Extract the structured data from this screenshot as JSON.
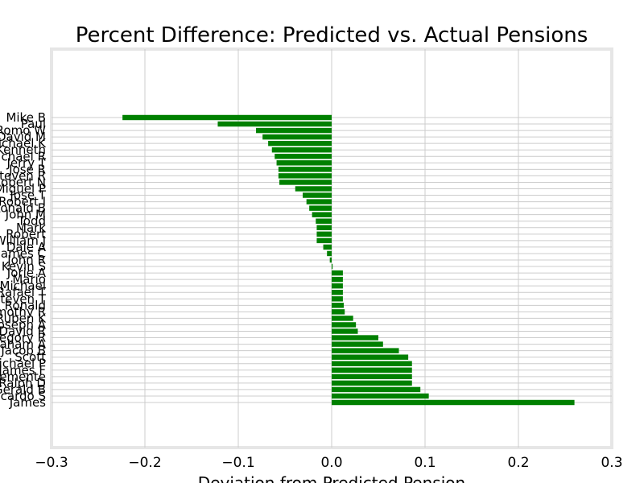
{
  "chart_data": {
    "type": "bar",
    "orientation": "horizontal",
    "title": "Percent Difference: Predicted vs. Actual Pensions",
    "xlabel": "Deviation from Predicted Pension",
    "ylabel": "",
    "xlim": [
      -0.3,
      0.3
    ],
    "xticks": [
      -0.3,
      -0.2,
      -0.1,
      0.0,
      0.1,
      0.2,
      0.3
    ],
    "xtick_labels": [
      "−0.3",
      "−0.2",
      "−0.1",
      "0.0",
      "0.1",
      "0.2",
      "0.3"
    ],
    "grid": true,
    "bar_color": "#008000",
    "background": "#ffffff",
    "frame_color": "#e6e6e6",
    "categories": [
      "Mike B",
      "Paul",
      "Romo W",
      "David M",
      "Michael K",
      "Kenneth",
      "Michael R",
      "Jerry T",
      "Jose R",
      "Steven R",
      "Robert N",
      "Miguel P",
      "Jose T",
      "Robert I",
      "Ronald B",
      "John M",
      "Todd",
      "Mark",
      "Robert",
      "William J",
      "Dale A",
      "James C",
      "John R",
      "Kevin S",
      "Jorie A",
      "Mario",
      "Michael",
      "Rafael T",
      "Steven T",
      "Ronald",
      "Timothy R",
      "Ruben K",
      "Joseph A",
      "David R",
      "Gregory R",
      "Graham A",
      "Jacob B",
      "Scott",
      "Michael P",
      "James F",
      "Clemente",
      "Ralph D",
      "Gerald B",
      "Ricardo S",
      "James"
    ],
    "values": [
      -0.224,
      -0.122,
      -0.081,
      -0.074,
      -0.068,
      -0.064,
      -0.061,
      -0.059,
      -0.057,
      -0.057,
      -0.056,
      -0.039,
      -0.031,
      -0.027,
      -0.024,
      -0.021,
      -0.017,
      -0.016,
      -0.016,
      -0.016,
      -0.009,
      -0.005,
      -0.002,
      0.001,
      0.012,
      0.012,
      0.012,
      0.012,
      0.012,
      0.013,
      0.014,
      0.023,
      0.026,
      0.028,
      0.05,
      0.055,
      0.072,
      0.082,
      0.086,
      0.086,
      0.086,
      0.086,
      0.095,
      0.104,
      0.26
    ]
  }
}
